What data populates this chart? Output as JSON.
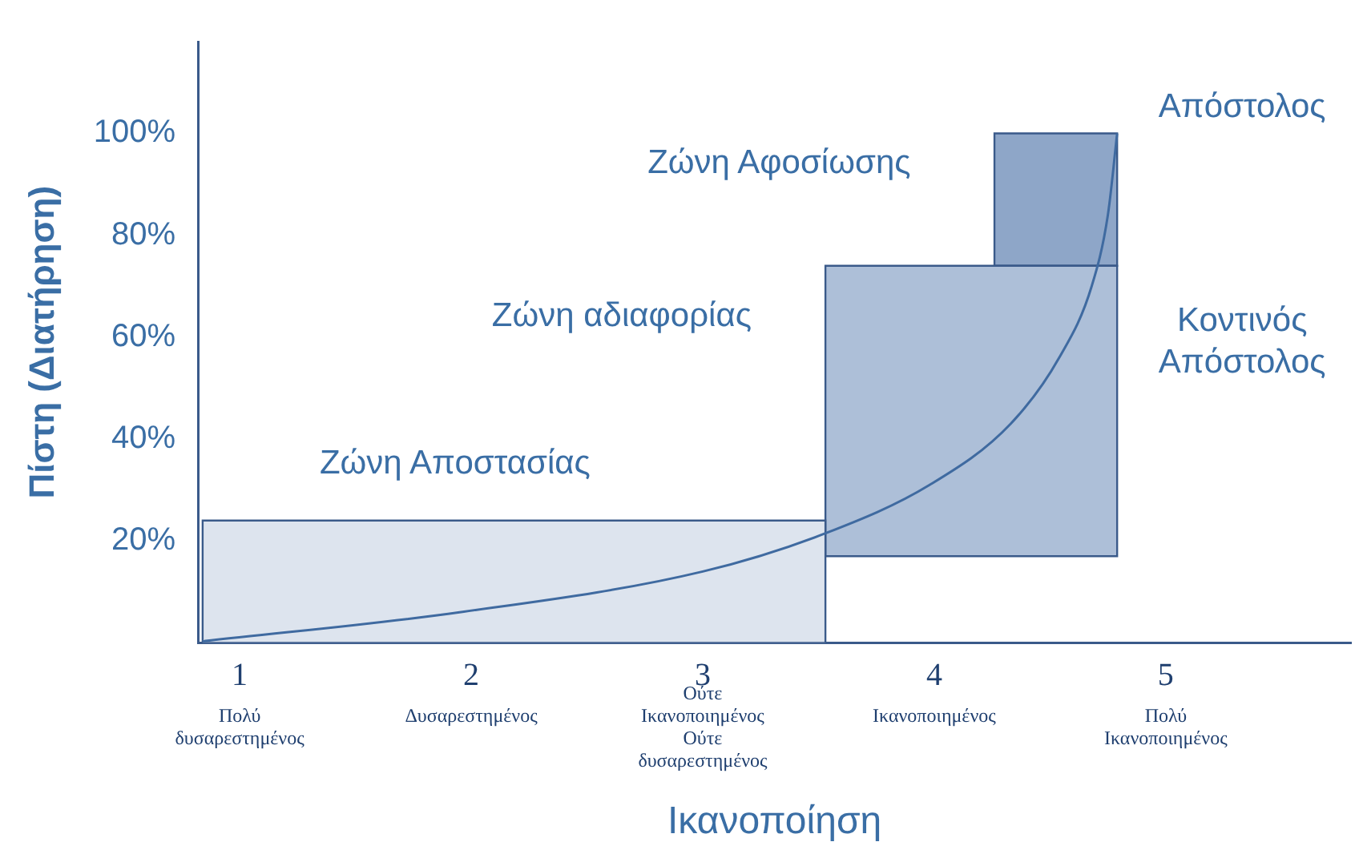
{
  "chart_data": {
    "type": "line",
    "xlabel": "Ικανοποίηση",
    "ylabel": "Πίστη (Διατήρηση)",
    "xlim": [
      0.82,
      5.8
    ],
    "ylim": [
      0,
      118
    ],
    "xticks": [
      1,
      2,
      3,
      4,
      5
    ],
    "yticks": [
      {
        "value": 20,
        "label": "20%"
      },
      {
        "value": 40,
        "label": "40%"
      },
      {
        "value": 60,
        "label": "60%"
      },
      {
        "value": 80,
        "label": "80%"
      },
      {
        "value": 100,
        "label": "100%"
      }
    ],
    "grid": false,
    "legend": false,
    "marker": "none",
    "series": [
      {
        "type": "area",
        "color": "#dde4ee",
        "x": [
          0.84,
          0.84,
          3.53,
          3.53,
          0.84
        ],
        "values": [
          0,
          24,
          24,
          0,
          0
        ]
      },
      {
        "type": "area",
        "color": "#adbfd8",
        "x": [
          3.53,
          3.53,
          4.79,
          4.79,
          3.53
        ],
        "values": [
          17,
          74,
          74,
          17,
          17
        ]
      },
      {
        "type": "area",
        "color": "#8ea6c8",
        "x": [
          4.26,
          4.26,
          4.79,
          4.79,
          4.26
        ],
        "values": [
          74,
          100,
          100,
          74,
          74
        ]
      },
      {
        "color": "#3f6aa0",
        "x": [
          0.84,
          1.95,
          3.0,
          3.53,
          3.98,
          4.33,
          4.54,
          4.68,
          4.75,
          4.79
        ],
        "values": [
          0.3,
          6,
          14,
          21.5,
          31,
          43,
          56,
          70,
          84,
          100
        ]
      }
    ],
    "annotations": [
      "Ζώνη Αποστασίας",
      "Ζώνη αδιαφορίας",
      "Ζώνη Αφοσίωσης",
      "Απόστολος",
      "Κοντινός Απόστολος",
      "Πολύ δυσαρεστημένος",
      "Δυσαρεστημένος",
      "Ούτε Ικανοποιημένος Ούτε δυσαρεστημένος",
      "Ικανοποιημένος",
      "Πολύ Ικανοποιημένος"
    ]
  }
}
